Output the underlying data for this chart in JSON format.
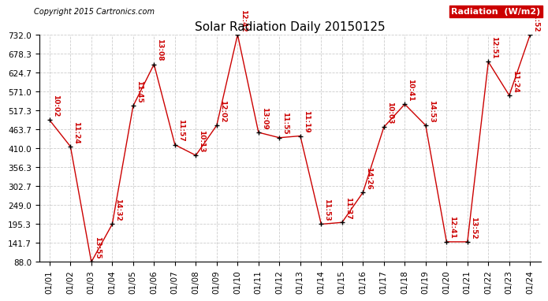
{
  "title": "Solar Radiation Daily 20150125",
  "copyright": "Copyright 2015 Cartronics.com",
  "legend_label": "Radiation  (W/m2)",
  "x_labels": [
    "01/01",
    "01/02",
    "01/03",
    "01/04",
    "01/05",
    "01/06",
    "01/07",
    "01/08",
    "01/09",
    "01/10",
    "01/11",
    "01/12",
    "01/13",
    "01/14",
    "01/15",
    "01/16",
    "01/17",
    "01/18",
    "01/19",
    "01/20",
    "01/21",
    "01/22",
    "01/23",
    "01/24"
  ],
  "y_values": [
    490,
    415,
    88,
    195,
    530,
    648,
    420,
    390,
    475,
    732,
    455,
    440,
    445,
    195,
    200,
    285,
    470,
    535,
    475,
    145,
    145,
    655,
    560,
    732
  ],
  "time_labels": [
    "10:02",
    "11:24",
    "13:55",
    "14:32",
    "11:45",
    "13:08",
    "11:57",
    "10:13",
    "12:02",
    "12:42",
    "13:09",
    "11:55",
    "11:19",
    "11:53",
    "11:37",
    "14:26",
    "10:03",
    "10:41",
    "14:53",
    "12:41",
    "13:52",
    "12:51",
    "11:24",
    "11:52"
  ],
  "y_ticks": [
    88.0,
    141.7,
    195.3,
    249.0,
    302.7,
    356.3,
    410.0,
    463.7,
    517.3,
    571.0,
    624.7,
    678.3,
    732.0
  ],
  "ylim_min": 88.0,
  "ylim_max": 732.0,
  "line_color": "#cc0000",
  "marker_color": "#000000",
  "label_color": "#cc0000",
  "background_color": "#ffffff",
  "grid_color": "#cccccc",
  "title_fontsize": 11,
  "copyright_fontsize": 7,
  "label_fontsize": 6.5,
  "legend_bg": "#cc0000",
  "legend_fg": "#ffffff",
  "legend_fontsize": 8,
  "tick_fontsize": 7.5,
  "figwidth": 6.9,
  "figheight": 3.75,
  "dpi": 100
}
